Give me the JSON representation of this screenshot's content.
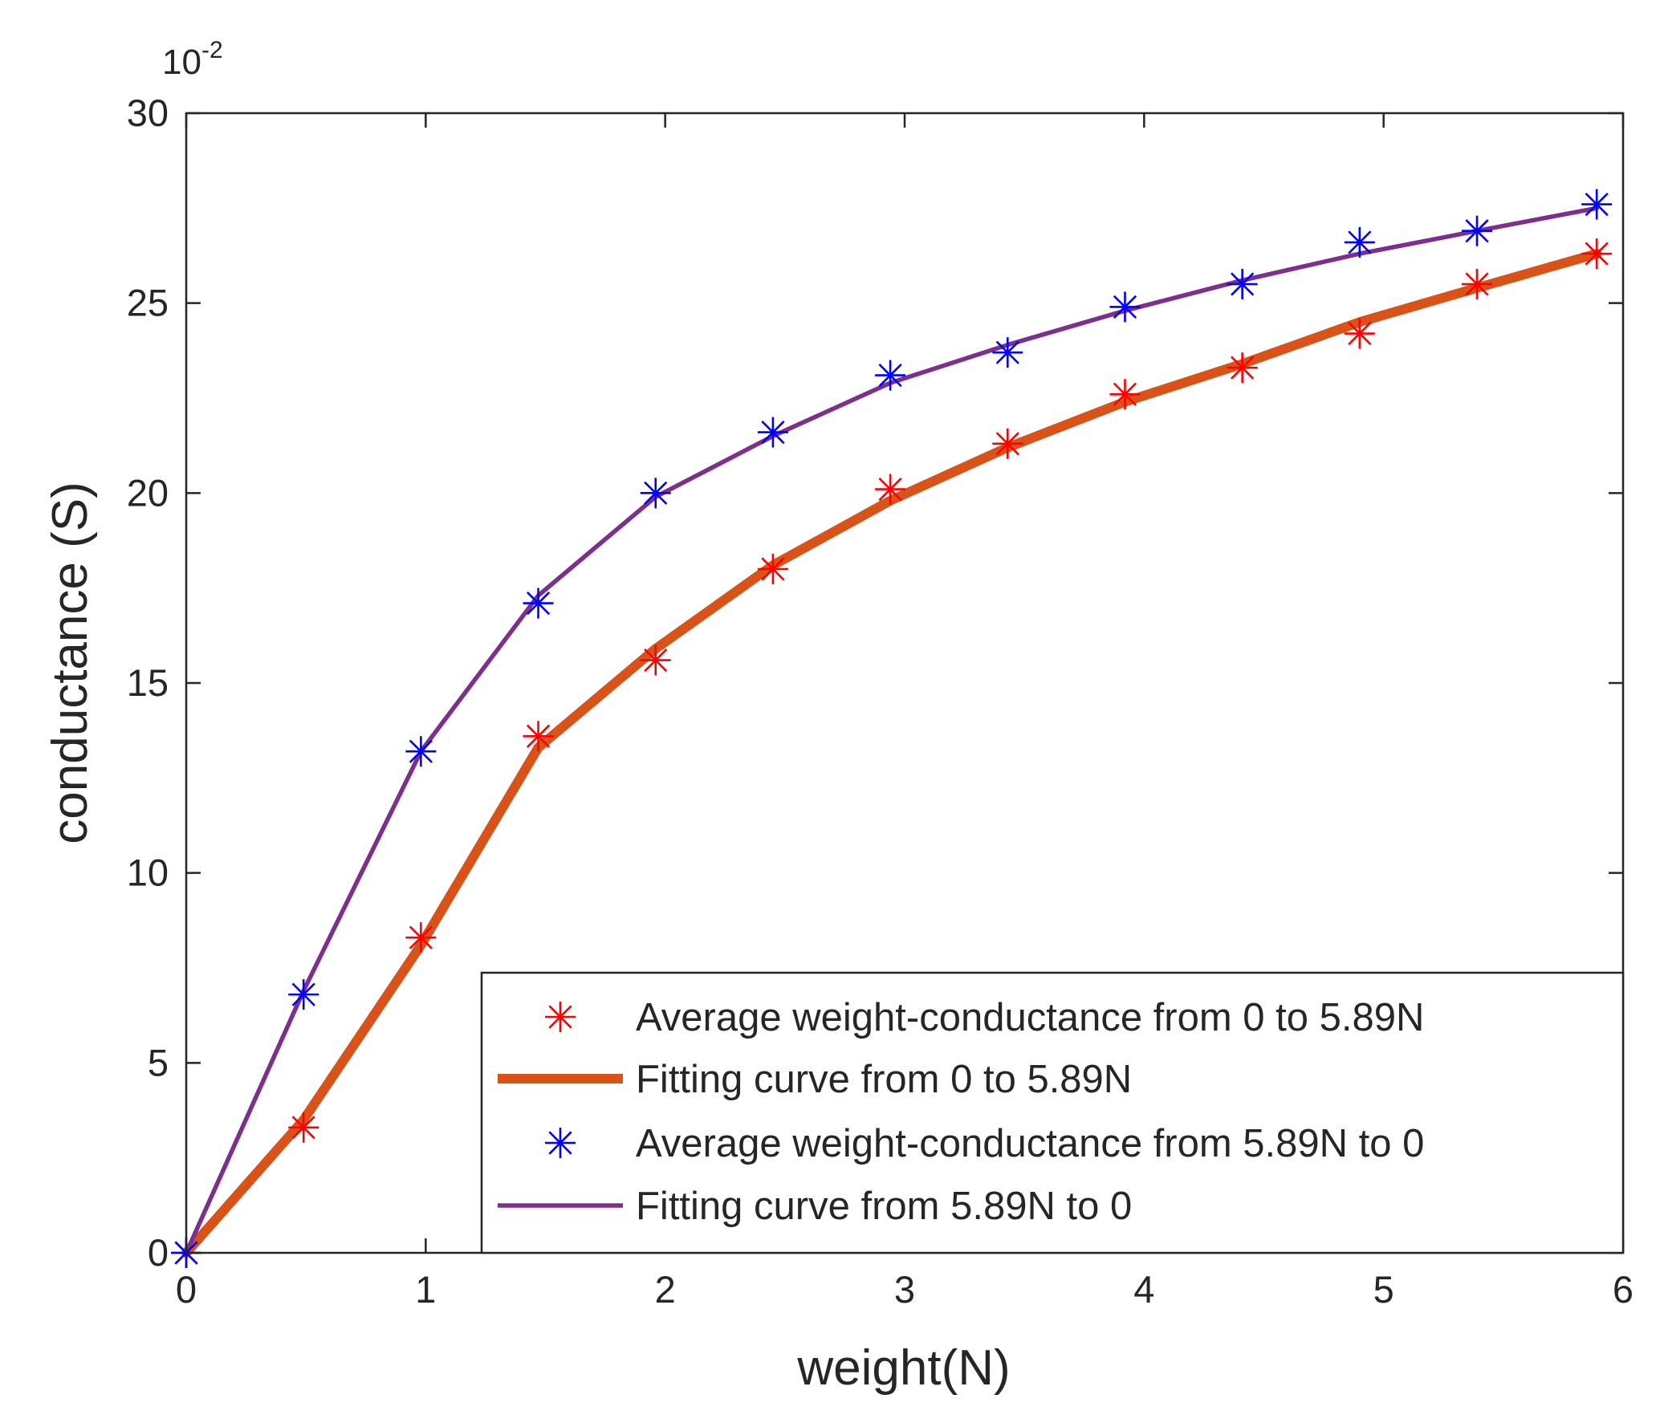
{
  "chart_data": {
    "type": "line",
    "title": "",
    "xlabel": "weight(N)",
    "ylabel": "conductance (S)",
    "y_exponent_base": "10",
    "y_exponent_power": "-2",
    "xlim": [
      0,
      6
    ],
    "ylim": [
      0,
      30
    ],
    "x_ticks": [
      0,
      1,
      2,
      3,
      4,
      5,
      6
    ],
    "y_ticks": [
      0,
      5,
      10,
      15,
      20,
      25,
      30
    ],
    "x_tick_labels": [
      "0",
      "1",
      "2",
      "3",
      "4",
      "5",
      "6"
    ],
    "y_tick_labels": [
      "0",
      "5",
      "10",
      "15",
      "20",
      "25",
      "30"
    ],
    "grid": false,
    "legend_position": "bottom-right",
    "series": [
      {
        "name": "Average weight-conductance from 0 to 5.89N",
        "kind": "markers",
        "marker": "asterisk",
        "color": "#ff0000",
        "x": [
          0,
          0.49,
          0.98,
          1.47,
          1.96,
          2.45,
          2.94,
          3.43,
          3.92,
          4.41,
          4.9,
          5.39,
          5.89
        ],
        "y": [
          0,
          3.3,
          8.3,
          13.6,
          15.6,
          18.0,
          20.1,
          21.3,
          22.6,
          23.3,
          24.2,
          25.5,
          26.3
        ]
      },
      {
        "name": "Fitting curve from 0 to 5.89N",
        "kind": "line",
        "color": "#d95319",
        "line_weight": "thick",
        "x": [
          0,
          0.49,
          0.98,
          1.47,
          1.96,
          2.45,
          2.94,
          3.43,
          3.92,
          4.41,
          4.9,
          5.39,
          5.89
        ],
        "y": [
          0,
          3.5,
          8.1,
          13.3,
          15.9,
          18.1,
          19.8,
          21.2,
          22.4,
          23.4,
          24.5,
          25.4,
          26.3
        ]
      },
      {
        "name": "Average weight-conductance from 5.89N to 0",
        "kind": "markers",
        "marker": "asterisk",
        "color": "#0000ff",
        "x": [
          0,
          0.49,
          0.98,
          1.47,
          1.96,
          2.45,
          2.94,
          3.43,
          3.92,
          4.41,
          4.9,
          5.39,
          5.89
        ],
        "y": [
          0,
          6.8,
          13.2,
          17.1,
          20.0,
          21.6,
          23.1,
          23.7,
          24.9,
          25.5,
          26.6,
          26.9,
          27.6
        ]
      },
      {
        "name": "Fitting curve from 5.89N to 0",
        "kind": "line",
        "color": "#7e2f8e",
        "line_weight": "normal",
        "x": [
          0,
          0.49,
          0.98,
          1.47,
          1.96,
          2.45,
          2.94,
          3.43,
          3.92,
          4.41,
          4.9,
          5.39,
          5.89
        ],
        "y": [
          0,
          6.9,
          13.2,
          17.3,
          19.9,
          21.5,
          22.9,
          23.9,
          24.8,
          25.6,
          26.3,
          26.9,
          27.5
        ]
      }
    ]
  }
}
